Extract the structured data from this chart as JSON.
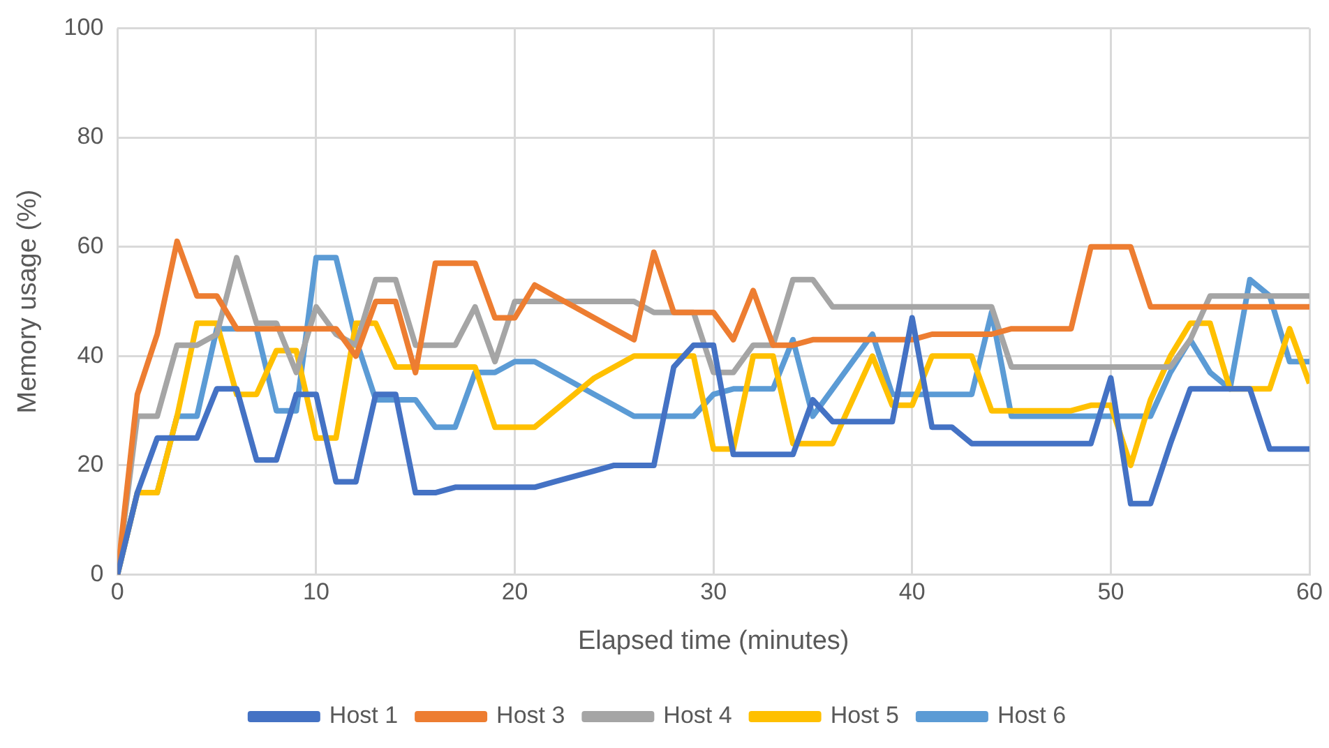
{
  "chart_data": {
    "type": "line",
    "xlabel": "Elapsed time (minutes)",
    "ylabel": "Memory usage (%)",
    "x": [
      0,
      1,
      2,
      3,
      4,
      5,
      6,
      7,
      8,
      9,
      10,
      11,
      12,
      13,
      14,
      15,
      16,
      17,
      18,
      19,
      20,
      21,
      22,
      23,
      24,
      25,
      26,
      27,
      28,
      29,
      30,
      31,
      32,
      33,
      34,
      35,
      36,
      37,
      38,
      39,
      40,
      41,
      42,
      43,
      44,
      45,
      46,
      47,
      48,
      49,
      50,
      51,
      52,
      53,
      54,
      55,
      56,
      57,
      58,
      59,
      60
    ],
    "xlim": [
      0,
      60
    ],
    "xticks": [
      0,
      10,
      20,
      30,
      40,
      50,
      60
    ],
    "ylim": [
      0,
      100
    ],
    "yticks": [
      0,
      20,
      40,
      60,
      80,
      100
    ],
    "grid": true,
    "legend": "bottom",
    "marker": "none",
    "line_style": "solid",
    "series": [
      {
        "name": "Host 1",
        "color": "#4472c4",
        "values": [
          0,
          15,
          25,
          25,
          25,
          34,
          34,
          21,
          21,
          33,
          33,
          17,
          17,
          33,
          33,
          15,
          15,
          16,
          16,
          16,
          16,
          16,
          17,
          18,
          19,
          20,
          20,
          20,
          38,
          42,
          42,
          22,
          22,
          22,
          22,
          32,
          28,
          28,
          28,
          28,
          47,
          27,
          27,
          24,
          24,
          24,
          24,
          24,
          24,
          24,
          36,
          13,
          13,
          24,
          34,
          34,
          34,
          34,
          23,
          23,
          23
        ]
      },
      {
        "name": "Host 3",
        "color": "#ed7d31",
        "values": [
          0,
          33,
          44,
          61,
          51,
          51,
          45,
          45,
          45,
          45,
          45,
          45,
          40,
          50,
          50,
          37,
          57,
          57,
          57,
          47,
          47,
          53,
          51,
          49,
          47,
          45,
          43,
          59,
          48,
          48,
          48,
          43,
          52,
          42,
          42,
          43,
          43,
          43,
          43,
          43,
          43,
          44,
          44,
          44,
          44,
          45,
          45,
          45,
          45,
          60,
          60,
          60,
          49,
          49,
          49,
          49,
          49,
          49,
          49,
          49,
          49
        ]
      },
      {
        "name": "Host 4",
        "color": "#a5a5a5",
        "values": [
          0,
          29,
          29,
          42,
          42,
          44,
          58,
          46,
          46,
          37,
          49,
          44,
          42,
          54,
          54,
          42,
          42,
          42,
          49,
          39,
          50,
          50,
          50,
          50,
          50,
          50,
          50,
          48,
          48,
          48,
          37,
          37,
          42,
          42,
          54,
          54,
          49,
          49,
          49,
          49,
          49,
          49,
          49,
          49,
          49,
          38,
          38,
          38,
          38,
          38,
          38,
          38,
          38,
          38,
          43,
          51,
          51,
          51,
          51,
          51,
          51
        ]
      },
      {
        "name": "Host 5",
        "color": "#ffc000",
        "values": [
          0,
          15,
          15,
          29,
          46,
          46,
          33,
          33,
          41,
          41,
          25,
          25,
          46,
          46,
          38,
          38,
          38,
          38,
          38,
          27,
          27,
          27,
          30,
          33,
          36,
          38,
          40,
          40,
          40,
          40,
          23,
          23,
          40,
          40,
          24,
          24,
          24,
          32,
          40,
          31,
          31,
          40,
          40,
          40,
          30,
          30,
          30,
          30,
          30,
          31,
          31,
          20,
          32,
          40,
          46,
          46,
          34,
          34,
          34,
          45,
          35
        ]
      },
      {
        "name": "Host 6",
        "color": "#5b9bd5",
        "values": [
          0,
          15,
          15,
          29,
          29,
          45,
          45,
          45,
          30,
          30,
          58,
          58,
          43,
          32,
          32,
          32,
          27,
          27,
          37,
          37,
          39,
          39,
          37,
          35,
          33,
          31,
          29,
          29,
          29,
          29,
          33,
          34,
          34,
          34,
          43,
          29,
          34,
          39,
          44,
          33,
          33,
          33,
          33,
          33,
          48,
          29,
          29,
          29,
          29,
          29,
          29,
          29,
          29,
          37,
          43,
          37,
          34,
          54,
          51,
          39,
          39
        ]
      }
    ]
  }
}
